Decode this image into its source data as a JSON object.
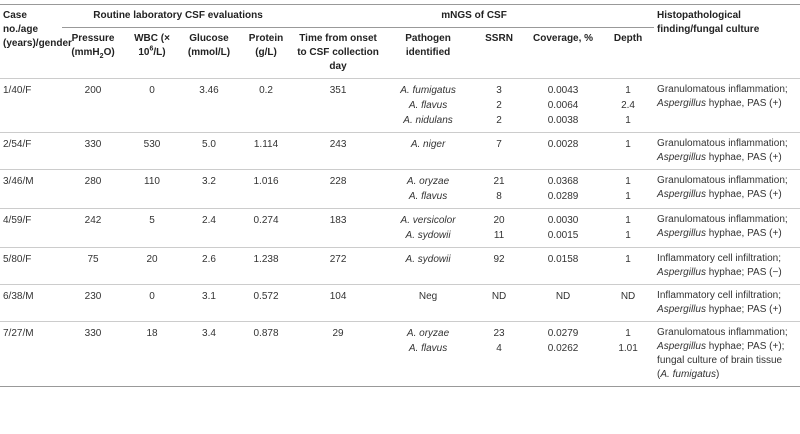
{
  "header": {
    "groups": [
      "Case no./age (years)/gender",
      "Routine laboratory CSF evaluations",
      "mNGS of CSF",
      "Histopathological finding/fungal culture"
    ],
    "columns": [
      [
        {
          "text": "Pressure (mmH"
        },
        {
          "text": "2",
          "sub": true
        },
        {
          "text": "O)"
        }
      ],
      [
        {
          "text": "WBC (× 10"
        },
        {
          "text": "6",
          "sup": true
        },
        {
          "text": "/L)"
        }
      ],
      [
        {
          "text": "Glucose (mmol/L)"
        }
      ],
      [
        {
          "text": "Protein (g/L)"
        }
      ],
      [
        {
          "text": "Time from onset to CSF collection day"
        }
      ],
      [
        {
          "text": "Pathogen identified"
        }
      ],
      [
        {
          "text": "SSRN"
        }
      ],
      [
        {
          "text": "Coverage, %"
        }
      ],
      [
        {
          "text": "Depth"
        }
      ]
    ]
  },
  "rows": [
    {
      "case": "1/40/F",
      "values": [
        "200",
        "0",
        "3.46",
        "0.2",
        "351"
      ],
      "mngs": [
        {
          "name": "A. fumigatus",
          "italic": true,
          "ssrn": "3",
          "coverage": "0.0043",
          "depth": "1"
        },
        {
          "name": "A. flavus",
          "italic": true,
          "ssrn": "2",
          "coverage": "0.0064",
          "depth": "2.4"
        },
        {
          "name": "A. nidulans",
          "italic": true,
          "ssrn": "2",
          "coverage": "0.0038",
          "depth": "1"
        }
      ],
      "histology": [
        {
          "text": "Granulomatous inflammation; "
        },
        {
          "text": "Aspergillus",
          "italic": true
        },
        {
          "text": " hyphae, PAS (+)"
        }
      ]
    },
    {
      "case": "2/54/F",
      "values": [
        "330",
        "530",
        "5.0",
        "1.114",
        "243"
      ],
      "mngs": [
        {
          "name": "A. niger",
          "italic": true,
          "ssrn": "7",
          "coverage": "0.0028",
          "depth": "1"
        }
      ],
      "histology": [
        {
          "text": "Granulomatous inflammation; "
        },
        {
          "text": "Aspergillus",
          "italic": true
        },
        {
          "text": " hyphae, PAS (+)"
        }
      ]
    },
    {
      "case": "3/46/M",
      "values": [
        "280",
        "110",
        "3.2",
        "1.016",
        "228"
      ],
      "mngs": [
        {
          "name": "A. oryzae",
          "italic": true,
          "ssrn": "21",
          "coverage": "0.0368",
          "depth": "1"
        },
        {
          "name": "A. flavus",
          "italic": true,
          "ssrn": "8",
          "coverage": "0.0289",
          "depth": "1"
        }
      ],
      "histology": [
        {
          "text": "Granulomatous inflammation; "
        },
        {
          "text": "Aspergillus",
          "italic": true
        },
        {
          "text": " hyphae, PAS (+)"
        }
      ]
    },
    {
      "case": "4/59/F",
      "values": [
        "242",
        "5",
        "2.4",
        "0.274",
        "183"
      ],
      "mngs": [
        {
          "name": "A. versicolor",
          "italic": true,
          "ssrn": "20",
          "coverage": "0.0030",
          "depth": "1"
        },
        {
          "name": "A. sydowii",
          "italic": true,
          "ssrn": "11",
          "coverage": "0.0015",
          "depth": "1"
        }
      ],
      "histology": [
        {
          "text": "Granulomatous inflammation; "
        },
        {
          "text": "Aspergillus",
          "italic": true
        },
        {
          "text": " hyphae, PAS (+)"
        }
      ]
    },
    {
      "case": "5/80/F",
      "values": [
        "75",
        "20",
        "2.6",
        "1.238",
        "272"
      ],
      "mngs": [
        {
          "name": "A. sydowii",
          "italic": true,
          "ssrn": "92",
          "coverage": "0.0158",
          "depth": "1"
        }
      ],
      "histology": [
        {
          "text": "Inflammatory cell infiltration; "
        },
        {
          "text": "Aspergillus",
          "italic": true
        },
        {
          "text": " hyphae; PAS (−)"
        }
      ]
    },
    {
      "case": "6/38/M",
      "values": [
        "230",
        "0",
        "3.1",
        "0.572",
        "104"
      ],
      "mngs": [
        {
          "name": "Neg",
          "italic": false,
          "ssrn": "ND",
          "coverage": "ND",
          "depth": "ND"
        }
      ],
      "histology": [
        {
          "text": "Inflammatory cell infiltration; "
        },
        {
          "text": "Aspergillus",
          "italic": true
        },
        {
          "text": " hyphae; PAS (+)"
        }
      ]
    },
    {
      "case": "7/27/M",
      "values": [
        "330",
        "18",
        "3.4",
        "0.878",
        "29"
      ],
      "mngs": [
        {
          "name": "A. oryzae",
          "italic": true,
          "ssrn": "23",
          "coverage": "0.0279",
          "depth": "1"
        },
        {
          "name": "A. flavus",
          "italic": true,
          "ssrn": "4",
          "coverage": "0.0262",
          "depth": "1.01"
        }
      ],
      "histology": [
        {
          "text": "Granulomatous inflammation; "
        },
        {
          "text": "Aspergillus",
          "italic": true
        },
        {
          "text": " hyphae; PAS (+); fungal culture of brain tissue ("
        },
        {
          "text": "A. fumigatus",
          "italic": true
        },
        {
          "text": ")"
        }
      ]
    }
  ]
}
